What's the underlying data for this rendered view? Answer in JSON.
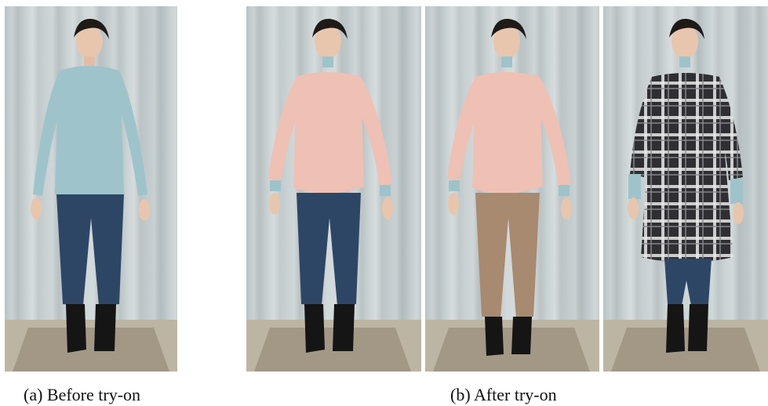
{
  "figure": {
    "panels": [
      {
        "id": "p1",
        "name": "before-photo",
        "top": "light-blue-shirt",
        "bottom": "blue-jeans",
        "top_color": "#9fc3cb",
        "bottom_color": "#2e4666"
      },
      {
        "id": "p2",
        "name": "after-photo-1",
        "top": "pink-sweater",
        "bottom": "blue-jeans",
        "top_color": "#efc0b4",
        "bottom_color": "#2e4666"
      },
      {
        "id": "p3",
        "name": "after-photo-2",
        "top": "pink-sweater",
        "bottom": "tan-trousers",
        "top_color": "#efc0b4",
        "bottom_color": "#a88a70"
      },
      {
        "id": "p4",
        "name": "after-photo-3",
        "top": "plaid-dress",
        "bottom": "blue-jeans",
        "top_color": "#3a3a3e",
        "bottom_color": "#2e4666"
      }
    ],
    "captions": {
      "before": "(a) Before try-on",
      "after": "(b) After try-on"
    }
  }
}
